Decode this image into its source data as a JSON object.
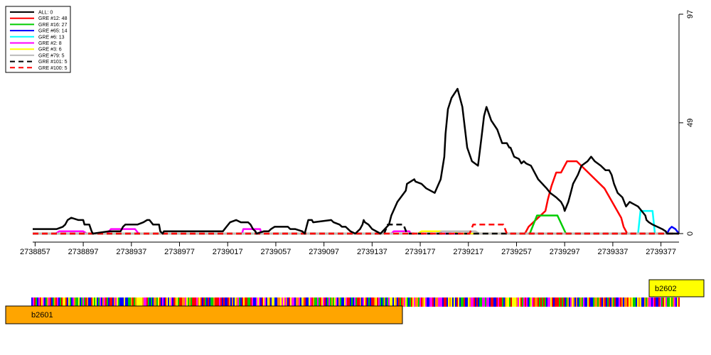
{
  "chart_data": {
    "type": "line",
    "title": "",
    "xlabel": "",
    "ylabel": "",
    "xlim": [
      2738855,
      2739392
    ],
    "ylim": [
      0,
      97
    ],
    "x_ticks": [
      2738857,
      2738897,
      2738937,
      2738977,
      2739017,
      2739057,
      2739097,
      2739137,
      2739177,
      2739217,
      2739257,
      2739297,
      2739337,
      2739377
    ],
    "x_tick_labels": [
      "2738857",
      "2738897",
      "2738937",
      "2738977",
      "2739017",
      "2739057",
      "2739097",
      "2739137",
      "2739177",
      "2739217",
      "2739257",
      "2739297",
      "2739337",
      "2739377"
    ],
    "y_ticks": [
      0,
      49,
      97
    ],
    "y_tick_labels": [
      "0",
      "49",
      "97"
    ],
    "legend_position": "top-left",
    "series": [
      {
        "name": "ALL: 0",
        "color": "#000000",
        "dash": "solid",
        "x": [
          2738855,
          2738871,
          2738875,
          2738880,
          2738882,
          2738884,
          2738887,
          2738893,
          2738897,
          2738898,
          2738902,
          2738904,
          2738905,
          2738918,
          2738928,
          2738930,
          2738932,
          2738942,
          2738947,
          2738950,
          2738952,
          2738955,
          2738960,
          2738961,
          2738963,
          2738964,
          2738967,
          2738975,
          2738992,
          2739004,
          2739013,
          2739016,
          2739019,
          2739024,
          2739028,
          2739034,
          2739036,
          2739038,
          2739040,
          2739041,
          2739047,
          2739049,
          2739051,
          2739053,
          2739056,
          2739067,
          2739069,
          2739073,
          2739079,
          2739081,
          2739082,
          2739083,
          2739084,
          2739086,
          2739087,
          2739088,
          2739103,
          2739105,
          2739110,
          2739112,
          2739115,
          2739119,
          2739123,
          2739127,
          2739129,
          2739130,
          2739131,
          2739134,
          2739137,
          2739144,
          2739151,
          2739153,
          2739158,
          2739165,
          2739166,
          2739172,
          2739173,
          2739178,
          2739182,
          2739189,
          2739194,
          2739197,
          2739198,
          2739200,
          2739203,
          2739208,
          2739212,
          2739214,
          2739216,
          2739220,
          2739225,
          2739228,
          2739230,
          2739232,
          2739236,
          2739241,
          2739245,
          2739249,
          2739251,
          2739252,
          2739255,
          2739259,
          2739261,
          2739263,
          2739265,
          2739269,
          2739271,
          2739275,
          2739282,
          2739285,
          2739290,
          2739292,
          2739294,
          2739296,
          2739297,
          2739300,
          2739302,
          2739304,
          2739308,
          2739311,
          2739316,
          2739319,
          2739322,
          2739327,
          2739331,
          2739334,
          2739336,
          2739338,
          2739341,
          2739345,
          2739348,
          2739351,
          2739358,
          2739361,
          2739364,
          2739365,
          2739367,
          2739370,
          2739374,
          2739378,
          2739381,
          2739382,
          2739385,
          2739388,
          2739392
        ],
        "y": [
          2,
          2,
          2,
          3,
          4,
          6,
          7,
          6,
          6,
          4,
          4,
          1,
          0,
          1,
          1,
          3,
          4,
          4,
          5,
          6,
          6,
          4,
          4,
          1,
          0,
          1,
          1,
          1,
          1,
          1,
          1,
          3,
          5,
          6,
          5,
          5,
          4,
          2,
          1,
          0,
          1,
          1,
          1,
          2,
          3,
          3,
          2,
          2,
          1,
          0,
          2,
          4,
          6,
          6,
          6,
          5,
          6,
          5,
          4,
          3,
          3,
          1,
          0,
          2,
          4,
          6,
          5,
          4,
          2,
          0,
          4,
          8,
          14,
          19,
          22,
          24,
          23,
          22,
          20,
          18,
          24,
          34,
          44,
          55,
          60,
          64,
          56,
          47,
          38,
          32,
          30,
          43,
          52,
          56,
          50,
          46,
          40,
          40,
          38,
          38,
          34,
          33,
          31,
          32,
          31,
          30,
          28,
          24,
          20,
          18,
          16,
          15,
          14,
          12,
          10,
          14,
          18,
          22,
          26,
          30,
          32,
          34,
          32,
          30,
          28,
          28,
          26,
          22,
          18,
          16,
          12,
          14,
          12,
          10,
          8,
          6,
          5,
          4,
          3,
          2,
          1,
          0,
          0,
          0,
          0
        ]
      },
      {
        "name": "GRE #12: 48",
        "color": "#ff0000",
        "dash": "solid",
        "x": [
          2738855,
          2739264,
          2739267,
          2739281,
          2739283,
          2739286,
          2739290,
          2739294,
          2739296,
          2739299,
          2739307,
          2739330,
          2739344,
          2739346,
          2739349,
          2739355,
          2739356,
          2739358,
          2739361,
          2739392
        ],
        "y": [
          0,
          0,
          3,
          10,
          15,
          21,
          27,
          27,
          29,
          32,
          32,
          20,
          7,
          3,
          0,
          0,
          0,
          0,
          0,
          0
        ]
      },
      {
        "name": "GRE #16: 27",
        "color": "#00cc00",
        "dash": "solid",
        "x": [
          2738855,
          2739268,
          2739274,
          2739291,
          2739298,
          2739392
        ],
        "y": [
          0,
          0,
          8,
          8,
          0,
          0
        ]
      },
      {
        "name": "GRE #65: 14",
        "color": "#0000ff",
        "dash": "solid",
        "x": [
          2738855,
          2739382,
          2739384,
          2739386,
          2739389,
          2739392
        ],
        "y": [
          0,
          0,
          2,
          3,
          2,
          0
        ]
      },
      {
        "name": "GRE #6: 13",
        "color": "#00ffff",
        "dash": "solid",
        "x": [
          2738855,
          2739358,
          2739360,
          2739370,
          2739372,
          2739392
        ],
        "y": [
          0,
          0,
          10,
          10,
          0,
          0
        ]
      },
      {
        "name": "GRE #2: 8",
        "color": "#ff00ff",
        "dash": "solid",
        "x": [
          2738855,
          2738874,
          2738877,
          2738897,
          2738900,
          2738917,
          2738920,
          2738940,
          2738943,
          2739029,
          2739030,
          2739044,
          2739045,
          2739153,
          2739155,
          2739168,
          2739169,
          2739392
        ],
        "y": [
          0,
          0,
          1,
          1,
          0,
          0,
          2,
          2,
          0,
          0,
          2,
          2,
          0,
          0,
          1,
          1,
          0,
          0
        ]
      },
      {
        "name": "GRE #3: 6",
        "color": "#ffff00",
        "dash": "solid",
        "x": [
          2738855,
          2739175,
          2739178,
          2739205,
          2739208,
          2739392
        ],
        "y": [
          0,
          0,
          1,
          1,
          0,
          0
        ]
      },
      {
        "name": "GRE #79: 5",
        "color": "#bbbbbb",
        "dash": "solid",
        "x": [
          2738855,
          2739192,
          2739195,
          2739223,
          2739226,
          2739392
        ],
        "y": [
          0,
          0,
          1,
          1,
          0,
          0
        ]
      },
      {
        "name": "GRE #101: 5",
        "color": "#000000",
        "dash": "dashed",
        "x": [
          2738855,
          2739147,
          2739150,
          2739163,
          2739166,
          2739392
        ],
        "y": [
          0,
          0,
          4,
          4,
          0,
          0
        ]
      },
      {
        "name": "GRE #100: 5",
        "color": "#ff0000",
        "dash": "dashed",
        "x": [
          2738855,
          2739218,
          2739221,
          2739246,
          2739249,
          2739392
        ],
        "y": [
          0,
          0,
          4,
          4,
          0,
          0
        ]
      }
    ],
    "genes": [
      {
        "name": "b2602",
        "color": "#ffff00"
      },
      {
        "name": "b2601",
        "color": "#ffa500"
      }
    ],
    "sequence_track_colors": [
      "#ff0000",
      "#00cc00",
      "#0000ff",
      "#ff00ff",
      "#ff8c00",
      "#ffff00"
    ]
  }
}
